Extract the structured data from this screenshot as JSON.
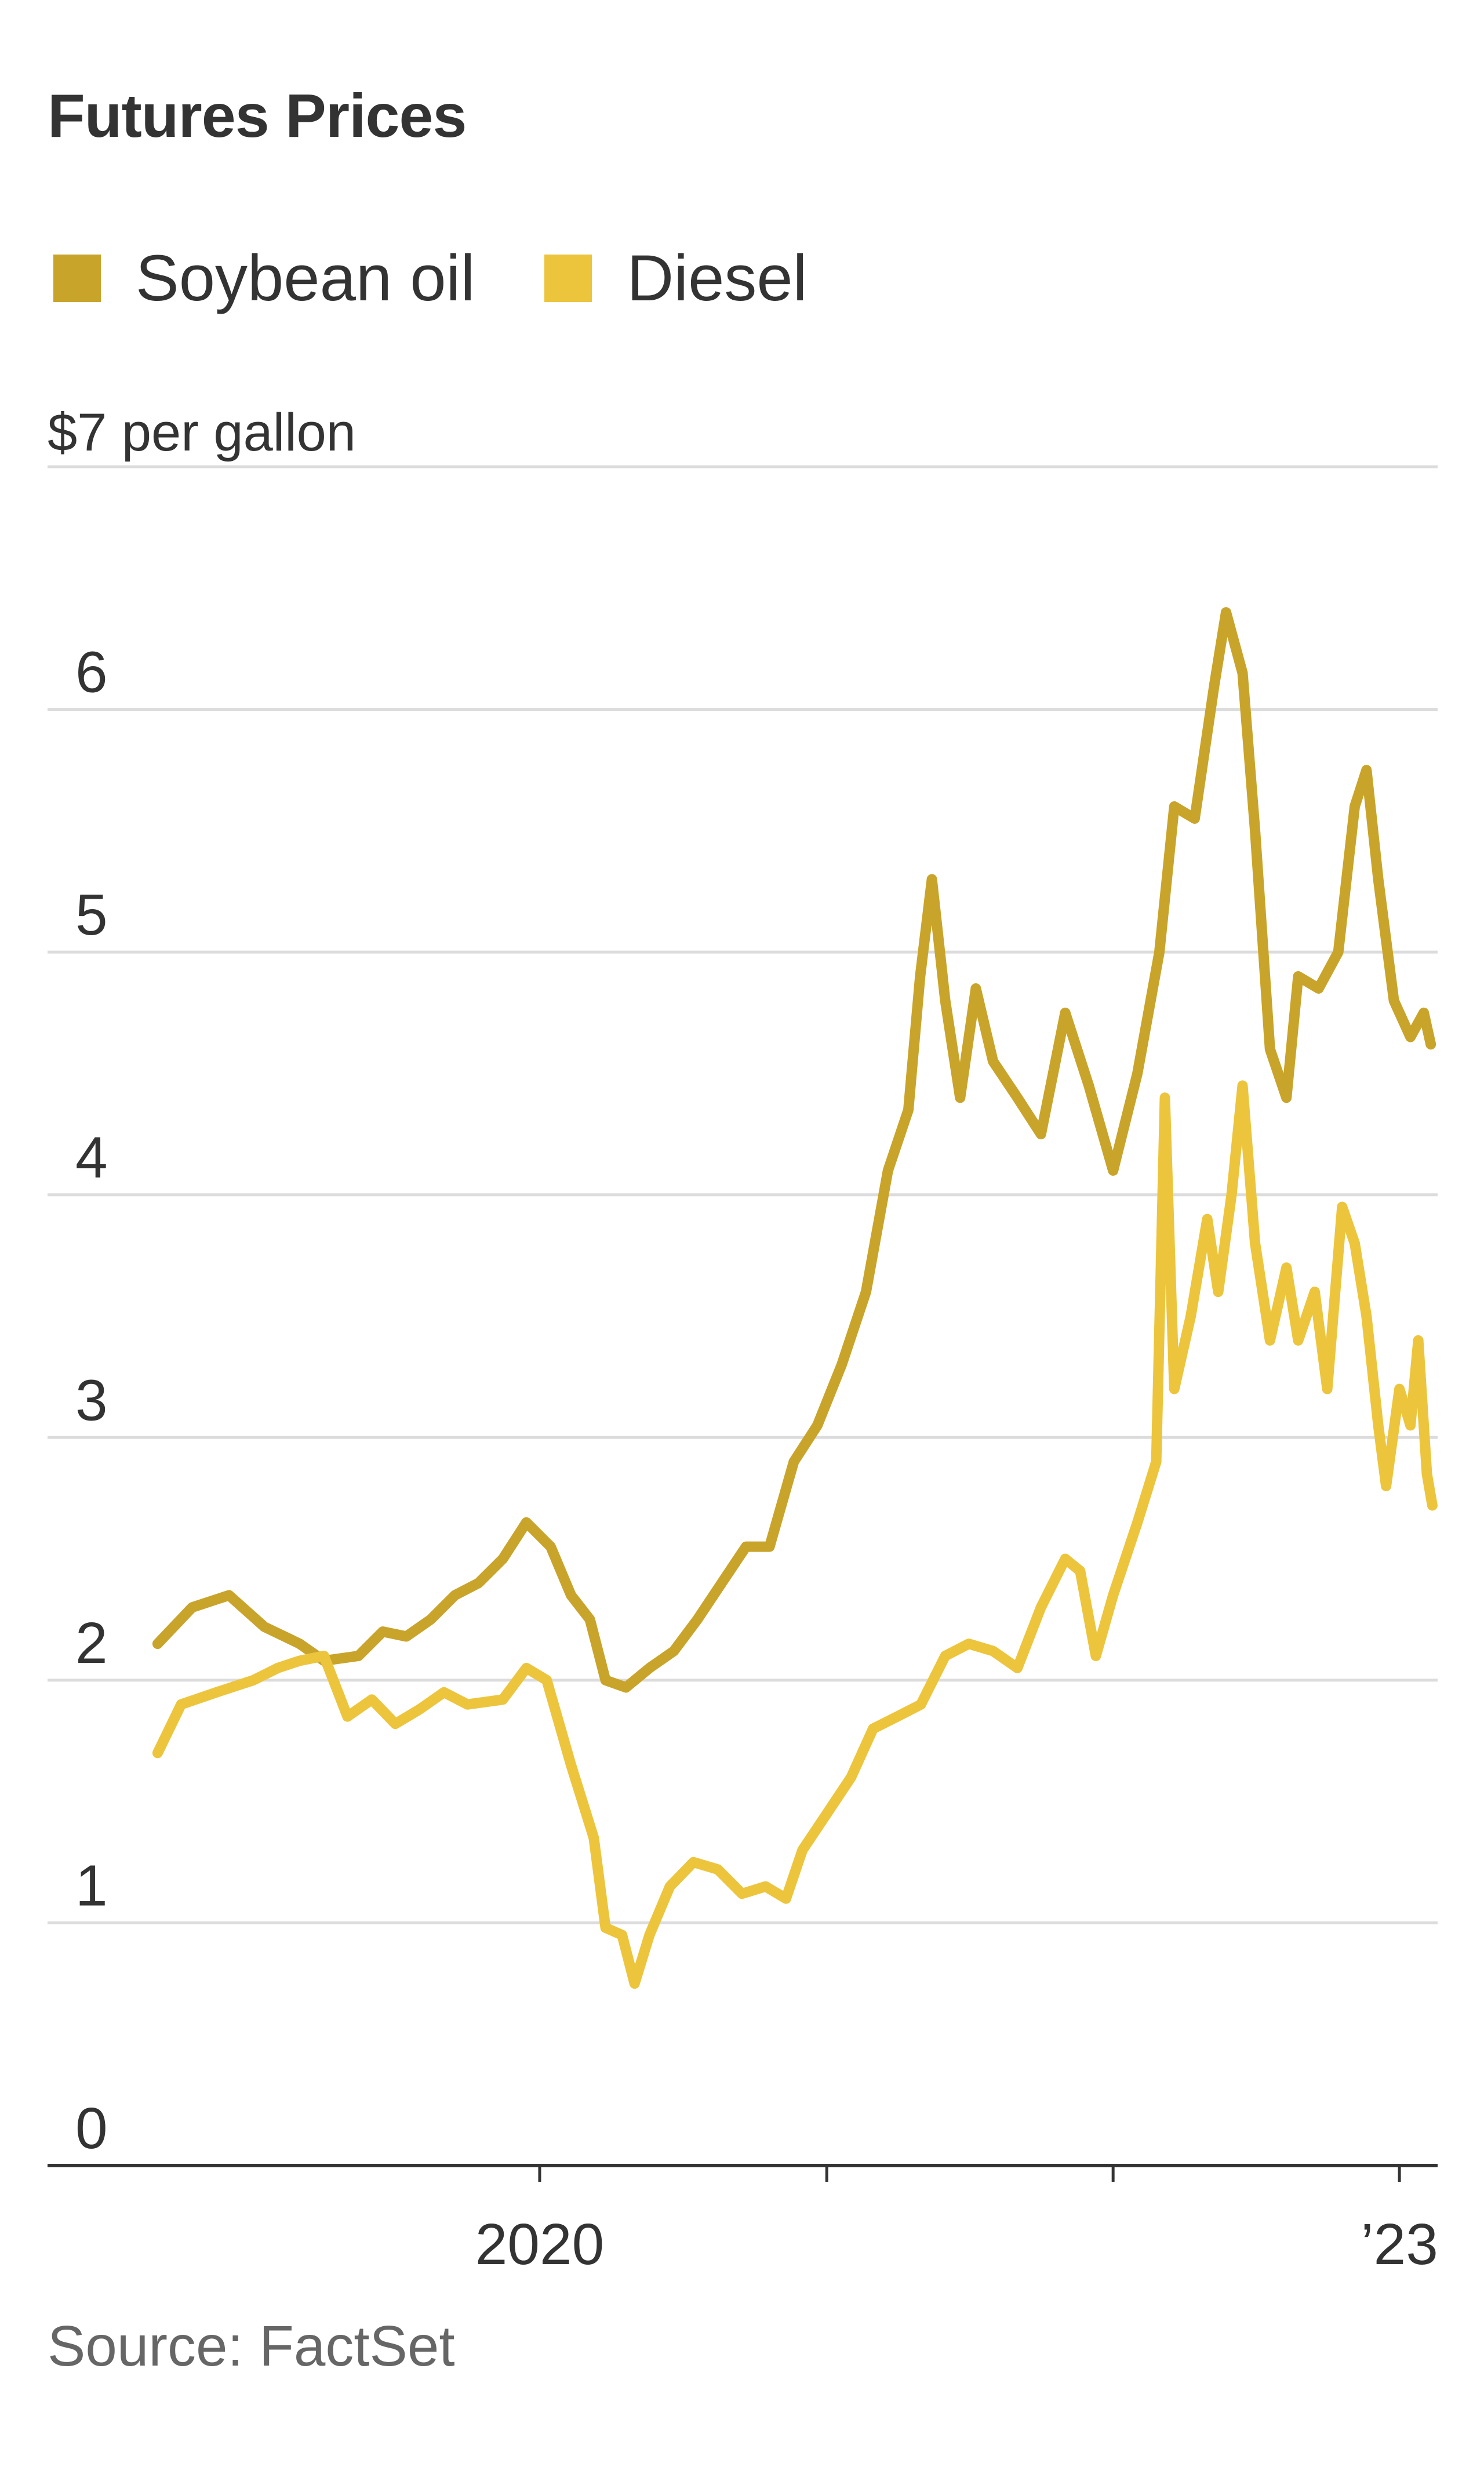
{
  "chart_data": {
    "type": "line",
    "title": "Futures Prices",
    "ylabel_unit": "$7 per gallon",
    "ylim": [
      0,
      7
    ],
    "yticks": [
      "0",
      "1",
      "2",
      "3",
      "4",
      "5",
      "6"
    ],
    "xticks": [
      {
        "date": "2020-01-01",
        "label": "2020"
      },
      {
        "date": "2021-01-01",
        "label": ""
      },
      {
        "date": "2022-01-01",
        "label": ""
      },
      {
        "date": "2023-01-01",
        "label": "’23"
      }
    ],
    "xlim": [
      "2018-08-01",
      "2023-02-15"
    ],
    "grid": true,
    "legend": "top-left",
    "source": "Source: FactSet",
    "series": [
      {
        "name": "Soybean oil",
        "color": "#c9a42b",
        "points": [
          [
            "2018-09-01",
            2.15
          ],
          [
            "2018-10-15",
            2.3
          ],
          [
            "2018-12-01",
            2.35
          ],
          [
            "2019-01-15",
            2.22
          ],
          [
            "2019-03-01",
            2.15
          ],
          [
            "2019-04-01",
            2.08
          ],
          [
            "2019-05-15",
            2.1
          ],
          [
            "2019-06-15",
            2.2
          ],
          [
            "2019-07-15",
            2.18
          ],
          [
            "2019-08-15",
            2.25
          ],
          [
            "2019-09-15",
            2.35
          ],
          [
            "2019-10-15",
            2.4
          ],
          [
            "2019-11-15",
            2.5
          ],
          [
            "2019-12-15",
            2.65
          ],
          [
            "2020-01-15",
            2.55
          ],
          [
            "2020-02-10",
            2.35
          ],
          [
            "2020-03-05",
            2.25
          ],
          [
            "2020-03-25",
            2.0
          ],
          [
            "2020-04-20",
            1.97
          ],
          [
            "2020-05-20",
            2.05
          ],
          [
            "2020-06-20",
            2.12
          ],
          [
            "2020-07-20",
            2.25
          ],
          [
            "2020-08-20",
            2.4
          ],
          [
            "2020-09-20",
            2.55
          ],
          [
            "2020-10-20",
            2.55
          ],
          [
            "2020-11-20",
            2.9
          ],
          [
            "2020-12-20",
            3.05
          ],
          [
            "2021-01-20",
            3.3
          ],
          [
            "2021-02-20",
            3.6
          ],
          [
            "2021-03-20",
            4.1
          ],
          [
            "2021-04-15",
            4.35
          ],
          [
            "2021-04-30",
            4.9
          ],
          [
            "2021-05-15",
            5.3
          ],
          [
            "2021-06-01",
            4.8
          ],
          [
            "2021-06-20",
            4.4
          ],
          [
            "2021-07-10",
            4.85
          ],
          [
            "2021-08-01",
            4.55
          ],
          [
            "2021-09-01",
            4.4
          ],
          [
            "2021-10-01",
            4.25
          ],
          [
            "2021-11-01",
            4.75
          ],
          [
            "2021-12-01",
            4.45
          ],
          [
            "2022-01-01",
            4.1
          ],
          [
            "2022-02-01",
            4.5
          ],
          [
            "2022-03-01",
            5.0
          ],
          [
            "2022-03-20",
            5.6
          ],
          [
            "2022-04-15",
            5.55
          ],
          [
            "2022-05-10",
            6.1
          ],
          [
            "2022-05-25",
            6.4
          ],
          [
            "2022-06-15",
            6.15
          ],
          [
            "2022-07-01",
            5.5
          ],
          [
            "2022-07-20",
            4.6
          ],
          [
            "2022-08-10",
            4.4
          ],
          [
            "2022-08-25",
            4.9
          ],
          [
            "2022-09-20",
            4.85
          ],
          [
            "2022-10-15",
            5.0
          ],
          [
            "2022-11-05",
            5.6
          ],
          [
            "2022-11-20",
            5.75
          ],
          [
            "2022-12-05",
            5.3
          ],
          [
            "2022-12-25",
            4.8
          ],
          [
            "2023-01-15",
            4.65
          ],
          [
            "2023-02-01",
            4.75
          ],
          [
            "2023-02-10",
            4.62
          ]
        ]
      },
      {
        "name": "Diesel",
        "color": "#ecc53d",
        "points": [
          [
            "2018-09-01",
            1.7
          ],
          [
            "2018-10-01",
            1.9
          ],
          [
            "2018-11-15",
            1.95
          ],
          [
            "2019-01-01",
            2.0
          ],
          [
            "2019-02-01",
            2.05
          ],
          [
            "2019-03-01",
            2.08
          ],
          [
            "2019-04-01",
            2.1
          ],
          [
            "2019-05-01",
            1.85
          ],
          [
            "2019-06-01",
            1.92
          ],
          [
            "2019-07-01",
            1.82
          ],
          [
            "2019-08-01",
            1.88
          ],
          [
            "2019-09-01",
            1.95
          ],
          [
            "2019-10-01",
            1.9
          ],
          [
            "2019-11-15",
            1.92
          ],
          [
            "2019-12-15",
            2.05
          ],
          [
            "2020-01-10",
            2.0
          ],
          [
            "2020-02-10",
            1.65
          ],
          [
            "2020-03-10",
            1.35
          ],
          [
            "2020-03-25",
            0.98
          ],
          [
            "2020-04-15",
            0.95
          ],
          [
            "2020-05-01",
            0.75
          ],
          [
            "2020-05-20",
            0.95
          ],
          [
            "2020-06-15",
            1.15
          ],
          [
            "2020-07-15",
            1.25
          ],
          [
            "2020-08-15",
            1.22
          ],
          [
            "2020-09-15",
            1.12
          ],
          [
            "2020-10-15",
            1.15
          ],
          [
            "2020-11-10",
            1.1
          ],
          [
            "2020-12-01",
            1.3
          ],
          [
            "2021-01-01",
            1.45
          ],
          [
            "2021-02-01",
            1.6
          ],
          [
            "2021-03-01",
            1.8
          ],
          [
            "2021-04-01",
            1.85
          ],
          [
            "2021-05-01",
            1.9
          ],
          [
            "2021-06-01",
            2.1
          ],
          [
            "2021-07-01",
            2.15
          ],
          [
            "2021-08-01",
            2.12
          ],
          [
            "2021-09-01",
            2.05
          ],
          [
            "2021-10-01",
            2.3
          ],
          [
            "2021-11-01",
            2.5
          ],
          [
            "2021-11-20",
            2.45
          ],
          [
            "2021-12-10",
            2.1
          ],
          [
            "2022-01-01",
            2.35
          ],
          [
            "2022-02-01",
            2.65
          ],
          [
            "2022-02-25",
            2.9
          ],
          [
            "2022-03-08",
            4.4
          ],
          [
            "2022-03-20",
            3.2
          ],
          [
            "2022-04-10",
            3.5
          ],
          [
            "2022-05-01",
            3.9
          ],
          [
            "2022-05-15",
            3.6
          ],
          [
            "2022-06-01",
            4.0
          ],
          [
            "2022-06-15",
            4.45
          ],
          [
            "2022-07-01",
            3.8
          ],
          [
            "2022-07-20",
            3.4
          ],
          [
            "2022-08-10",
            3.7
          ],
          [
            "2022-08-25",
            3.4
          ],
          [
            "2022-09-15",
            3.6
          ],
          [
            "2022-10-01",
            3.2
          ],
          [
            "2022-10-20",
            3.95
          ],
          [
            "2022-11-05",
            3.8
          ],
          [
            "2022-11-20",
            3.5
          ],
          [
            "2022-12-05",
            3.05
          ],
          [
            "2022-12-15",
            2.8
          ],
          [
            "2023-01-01",
            3.2
          ],
          [
            "2023-01-15",
            3.05
          ],
          [
            "2023-01-25",
            3.4
          ],
          [
            "2023-02-05",
            2.85
          ],
          [
            "2023-02-12",
            2.72
          ]
        ]
      }
    ]
  }
}
